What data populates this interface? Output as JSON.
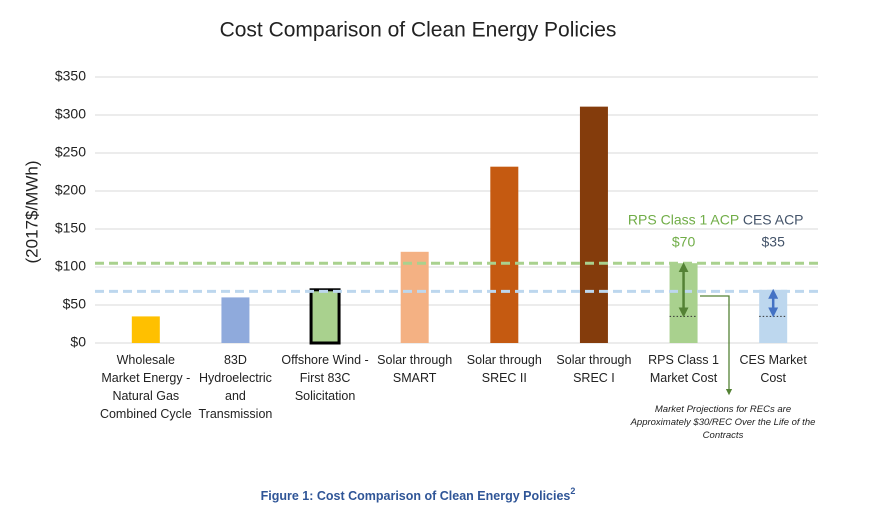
{
  "chart_data": {
    "type": "bar",
    "title": "Cost Comparison of Clean Energy Policies",
    "y_label": "(2017$/MWh)",
    "categories": [
      "Wholesale Market Energy - Natural Gas Combined Cycle",
      "83D Hydroelectric and Transmission",
      "Offshore Wind - First 83C Solicitation",
      "Solar through SMART",
      "Solar through SREC II",
      "Solar through SREC I",
      "RPS Class 1 Market Cost",
      "CES Market Cost"
    ],
    "values": [
      35,
      60,
      70,
      120,
      232,
      311,
      105,
      70
    ],
    "colors": [
      "#ffc000",
      "#8faadc",
      "#a9d18e",
      "#f4b183",
      "#c55a11",
      "#843c0c",
      "#a9d18e",
      "#bdd7ee"
    ],
    "outlined": [
      2
    ],
    "outline_color": "#000000",
    "ylim": [
      0,
      350
    ],
    "yticks": [
      {
        "value": 0,
        "label": "$0"
      },
      {
        "value": 50,
        "label": "$50"
      },
      {
        "value": 100,
        "label": "$100"
      },
      {
        "value": 150,
        "label": "$150"
      },
      {
        "value": 200,
        "label": "$200"
      },
      {
        "value": 250,
        "label": "$250"
      },
      {
        "value": 300,
        "label": "$300"
      },
      {
        "value": 350,
        "label": "$350"
      }
    ],
    "grid": true,
    "reference_lines": [
      {
        "value": 105,
        "color": "#a9d18e"
      },
      {
        "value": 68,
        "color": "#bdd7ee"
      }
    ],
    "ranges": [
      {
        "category": 6,
        "from": 35,
        "to": 105,
        "color": "#548235",
        "label": "RPS Class 1 ACP",
        "value_label": "$70",
        "label_color": "#70ad47"
      },
      {
        "category": 7,
        "from": 35,
        "to": 70,
        "color": "#4472c4",
        "label": "CES ACP",
        "value_label": "$35",
        "label_color": "#44546a"
      }
    ],
    "note": "Market Projections for RECs are Approximately $30/REC Over the Life of the Contracts",
    "caption": "Figure 1: Cost Comparison of Clean Energy Policies",
    "caption_footnote": "2"
  }
}
